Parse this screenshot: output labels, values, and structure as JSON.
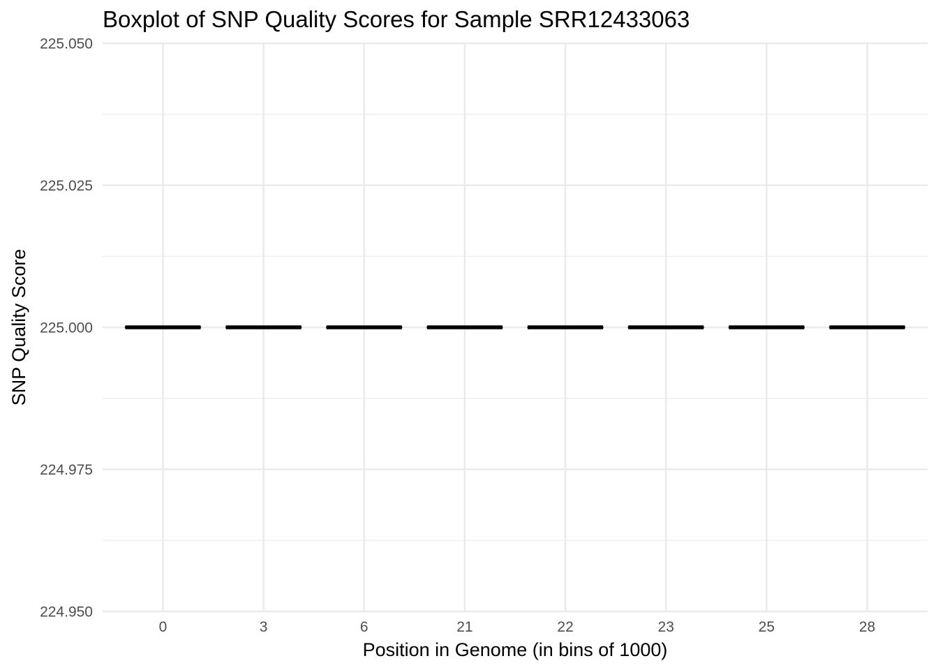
{
  "chart_data": {
    "type": "boxplot",
    "title": "Boxplot of SNP Quality Scores for Sample SRR12433063",
    "xlabel": "Position in Genome (in bins of 1000)",
    "ylabel": "SNP Quality Score",
    "categories": [
      "0",
      "3",
      "6",
      "21",
      "22",
      "23",
      "25",
      "28"
    ],
    "series": [
      {
        "values": [
          {
            "category": "0",
            "min": 225.0,
            "q1": 225.0,
            "median": 225.0,
            "q3": 225.0,
            "max": 225.0
          },
          {
            "category": "3",
            "min": 225.0,
            "q1": 225.0,
            "median": 225.0,
            "q3": 225.0,
            "max": 225.0
          },
          {
            "category": "6",
            "min": 225.0,
            "q1": 225.0,
            "median": 225.0,
            "q3": 225.0,
            "max": 225.0
          },
          {
            "category": "21",
            "min": 225.0,
            "q1": 225.0,
            "median": 225.0,
            "q3": 225.0,
            "max": 225.0
          },
          {
            "category": "22",
            "min": 225.0,
            "q1": 225.0,
            "median": 225.0,
            "q3": 225.0,
            "max": 225.0
          },
          {
            "category": "23",
            "min": 225.0,
            "q1": 225.0,
            "median": 225.0,
            "q3": 225.0,
            "max": 225.0
          },
          {
            "category": "25",
            "min": 225.0,
            "q1": 225.0,
            "median": 225.0,
            "q3": 225.0,
            "max": 225.0
          },
          {
            "category": "28",
            "min": 225.0,
            "q1": 225.0,
            "median": 225.0,
            "q3": 225.0,
            "max": 225.0
          }
        ]
      }
    ],
    "ylim": [
      224.95,
      225.05
    ],
    "yticks": [
      224.95,
      224.975,
      225.0,
      225.025,
      225.05
    ],
    "ytick_labels": [
      "224.950",
      "224.975",
      "225.000",
      "225.025",
      "225.050"
    ],
    "grid": true,
    "legend": "none",
    "colors": {
      "box_line": "#000000",
      "grid": "#ebebeb",
      "tick_text": "#4d4d4d",
      "background": "#ffffff"
    }
  }
}
